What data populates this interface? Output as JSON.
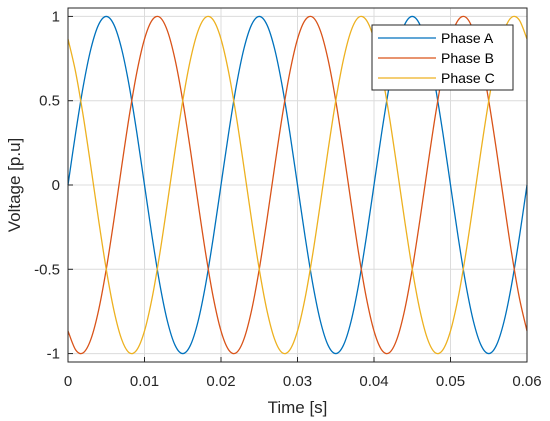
{
  "chart_data": {
    "type": "line",
    "xlabel": "Time [s]",
    "ylabel": "Voltage [p.u]",
    "xlim": [
      0,
      0.06
    ],
    "ylim": [
      -1.05,
      1.05
    ],
    "xticks": [
      0,
      0.01,
      0.02,
      0.03,
      0.04,
      0.05,
      0.06
    ],
    "xtick_labels": [
      "0",
      "0.01",
      "0.02",
      "0.03",
      "0.04",
      "0.05",
      "0.06"
    ],
    "yticks": [
      -1,
      -0.5,
      0,
      0.5,
      1
    ],
    "ytick_labels": [
      "-1",
      "-0.5",
      "0",
      "0.5",
      "1"
    ],
    "grid": true,
    "legend_position": "top-right",
    "series": [
      {
        "name": "Phase A",
        "color": "#0072BD",
        "x": [
          0,
          0.001,
          0.002,
          0.003,
          0.004,
          0.005,
          0.006,
          0.007,
          0.008,
          0.009,
          0.01,
          0.011,
          0.012,
          0.013,
          0.014,
          0.015,
          0.016,
          0.017,
          0.018,
          0.019,
          0.02,
          0.021,
          0.022,
          0.023,
          0.024,
          0.025,
          0.026,
          0.027,
          0.028,
          0.029,
          0.03,
          0.031,
          0.032,
          0.033,
          0.034,
          0.035,
          0.036,
          0.037,
          0.038,
          0.039,
          0.04,
          0.041,
          0.042,
          0.043,
          0.044,
          0.045,
          0.046,
          0.047,
          0.048,
          0.049,
          0.05,
          0.051,
          0.052,
          0.053,
          0.054,
          0.055,
          0.056,
          0.057,
          0.058,
          0.059,
          0.06
        ],
        "y": [
          0,
          0.309,
          0.588,
          0.809,
          0.951,
          1,
          0.951,
          0.809,
          0.588,
          0.309,
          0,
          -0.309,
          -0.588,
          -0.809,
          -0.951,
          -1,
          -0.951,
          -0.809,
          -0.588,
          -0.309,
          0,
          0.309,
          0.588,
          0.809,
          0.951,
          1,
          0.951,
          0.809,
          0.588,
          0.309,
          0,
          -0.309,
          -0.588,
          -0.809,
          -0.951,
          -1,
          -0.951,
          -0.809,
          -0.588,
          -0.309,
          0,
          0.309,
          0.588,
          0.809,
          0.951,
          1,
          0.951,
          0.809,
          0.588,
          0.309,
          0,
          -0.309,
          -0.588,
          -0.809,
          -0.951,
          -1,
          -0.951,
          -0.809,
          -0.588,
          -0.309,
          0
        ]
      },
      {
        "name": "Phase B",
        "color": "#D95319",
        "x": [
          0,
          0.001,
          0.002,
          0.003,
          0.004,
          0.005,
          0.006,
          0.007,
          0.008,
          0.009,
          0.01,
          0.011,
          0.012,
          0.013,
          0.014,
          0.015,
          0.016,
          0.017,
          0.018,
          0.019,
          0.02,
          0.021,
          0.022,
          0.023,
          0.024,
          0.025,
          0.026,
          0.027,
          0.028,
          0.029,
          0.03,
          0.031,
          0.032,
          0.033,
          0.034,
          0.035,
          0.036,
          0.037,
          0.038,
          0.039,
          0.04,
          0.041,
          0.042,
          0.043,
          0.044,
          0.045,
          0.046,
          0.047,
          0.048,
          0.049,
          0.05,
          0.051,
          0.052,
          0.053,
          0.054,
          0.055,
          0.056,
          0.057,
          0.058,
          0.059,
          0.06
        ],
        "y": [
          -0.866,
          -0.978,
          -0.995,
          -0.914,
          -0.743,
          -0.5,
          -0.208,
          0.105,
          0.407,
          0.669,
          0.866,
          0.978,
          0.995,
          0.914,
          0.743,
          0.5,
          0.208,
          -0.105,
          -0.407,
          -0.669,
          -0.866,
          -0.978,
          -0.995,
          -0.914,
          -0.743,
          -0.5,
          -0.208,
          0.105,
          0.407,
          0.669,
          0.866,
          0.978,
          0.995,
          0.914,
          0.743,
          0.5,
          0.208,
          -0.105,
          -0.407,
          -0.669,
          -0.866,
          -0.978,
          -0.995,
          -0.914,
          -0.743,
          -0.5,
          -0.208,
          0.105,
          0.407,
          0.669,
          0.866,
          0.978,
          0.995,
          0.914,
          0.743,
          0.5,
          0.208,
          -0.105,
          -0.407,
          -0.669,
          -0.866
        ]
      },
      {
        "name": "Phase C",
        "color": "#EDB120",
        "x": [
          0,
          0.001,
          0.002,
          0.003,
          0.004,
          0.005,
          0.006,
          0.007,
          0.008,
          0.009,
          0.01,
          0.011,
          0.012,
          0.013,
          0.014,
          0.015,
          0.016,
          0.017,
          0.018,
          0.019,
          0.02,
          0.021,
          0.022,
          0.023,
          0.024,
          0.025,
          0.026,
          0.027,
          0.028,
          0.029,
          0.03,
          0.031,
          0.032,
          0.033,
          0.034,
          0.035,
          0.036,
          0.037,
          0.038,
          0.039,
          0.04,
          0.041,
          0.042,
          0.043,
          0.044,
          0.045,
          0.046,
          0.047,
          0.048,
          0.049,
          0.05,
          0.051,
          0.052,
          0.053,
          0.054,
          0.055,
          0.056,
          0.057,
          0.058,
          0.059,
          0.06
        ],
        "y": [
          0.866,
          0.669,
          0.407,
          0.105,
          -0.208,
          -0.5,
          -0.743,
          -0.914,
          -0.995,
          -0.978,
          -0.866,
          -0.669,
          -0.407,
          -0.105,
          0.208,
          0.5,
          0.743,
          0.914,
          0.995,
          0.978,
          0.866,
          0.669,
          0.407,
          0.105,
          -0.208,
          -0.5,
          -0.743,
          -0.914,
          -0.995,
          -0.978,
          -0.866,
          -0.669,
          -0.407,
          -0.105,
          0.208,
          0.5,
          0.743,
          0.914,
          0.995,
          0.978,
          0.866,
          0.669,
          0.407,
          0.105,
          -0.208,
          -0.5,
          -0.743,
          -0.914,
          -0.995,
          -0.978,
          -0.866,
          -0.669,
          -0.407,
          -0.105,
          0.208,
          0.5,
          0.743,
          0.914,
          0.995,
          0.978,
          0.866
        ]
      }
    ]
  }
}
